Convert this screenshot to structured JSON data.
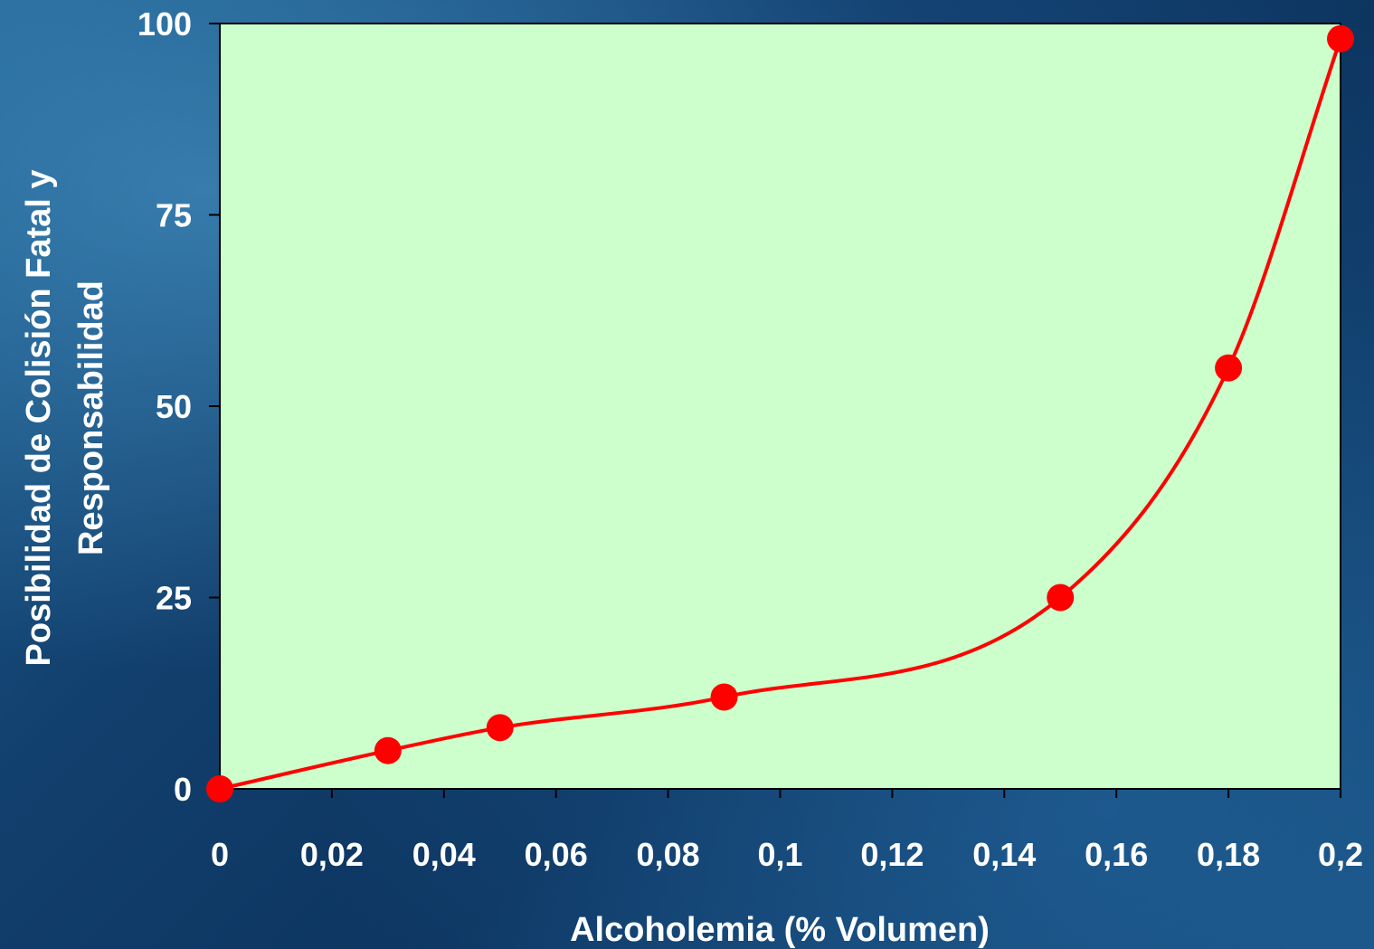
{
  "chart_data": {
    "type": "line",
    "title": "",
    "xlabel": "Alcoholemia (% Volumen)",
    "ylabel_lines": [
      "Posibilidad de Colisión Fatal y",
      "Responsabilidad"
    ],
    "xlim": [
      0,
      0.2
    ],
    "ylim": [
      0,
      100
    ],
    "x_ticks": [
      0,
      0.02,
      0.04,
      0.06,
      0.08,
      0.1,
      0.12,
      0.14,
      0.16,
      0.18,
      0.2
    ],
    "x_tick_labels": [
      "0",
      "0,02",
      "0,04",
      "0,06",
      "0,08",
      "0,1",
      "0,12",
      "0,14",
      "0,16",
      "0,18",
      "0,2"
    ],
    "y_ticks": [
      0,
      25,
      50,
      75,
      100
    ],
    "y_tick_labels": [
      "0",
      "25",
      "50",
      "75",
      "100"
    ],
    "grid": false,
    "legend": "none",
    "series": [
      {
        "x": [
          0,
          0.03,
          0.05,
          0.09,
          0.15,
          0.18,
          0.2
        ],
        "y": [
          0,
          5,
          8,
          12,
          25,
          55,
          98
        ]
      }
    ],
    "colors": {
      "plot_background": "#ccffcc",
      "line": "#ff0000",
      "marker": "#ff0000",
      "text": "#ffffff"
    }
  }
}
